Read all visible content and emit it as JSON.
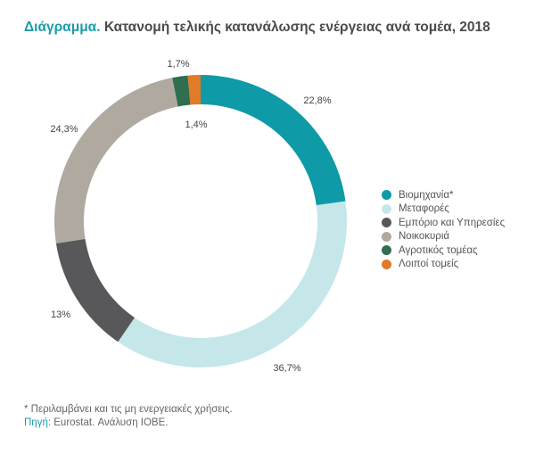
{
  "title_prefix": "Διάγραμμα.",
  "title": "Κατανομή τελικής κατανάλωσης ενέργειας ανά τομέα, 2018",
  "footnote": "* Περιλαμβάνει και τις μη ενεργειακές χρήσεις.",
  "source_label": "Πηγή:",
  "source": "Eurostat. Ανάλυση ΙΟΒΕ.",
  "chart_data": {
    "type": "pie",
    "variant": "donut",
    "start": "top, clockwise",
    "legend_position": "right",
    "categories": [
      "Βιομηχανία*",
      "Μεταφορές",
      "Εμπόριο και Υπηρεσίες",
      "Νοικοκυριά",
      "Αγροτικός τομέας",
      "Λοιποί τομείς"
    ],
    "values": [
      22.8,
      36.7,
      13,
      24.3,
      1.7,
      1.4
    ],
    "labels": [
      "22,8%",
      "36,7%",
      "13%",
      "24,3%",
      "1,7%",
      "1,4%"
    ],
    "colors": [
      "#0e9aa7",
      "#c6e7ea",
      "#58585a",
      "#b0a9a0",
      "#2f6e4e",
      "#e07b27"
    ]
  }
}
